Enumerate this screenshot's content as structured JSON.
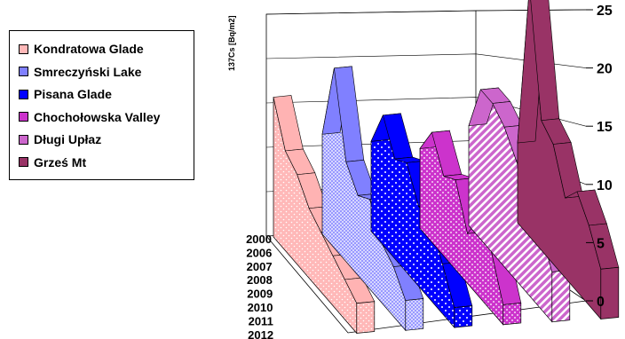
{
  "chart_data": {
    "type": "area",
    "variant": "3d-area",
    "title": "",
    "zlabel": "137Cs [Bq/m2]",
    "zlim": [
      0,
      25
    ],
    "z_ticks": [
      "0",
      "5",
      "10",
      "15",
      "20",
      "25"
    ],
    "years": [
      "2000",
      "2006",
      "2007",
      "2008",
      "2009",
      "2010",
      "2011",
      "2012"
    ],
    "grid": true,
    "legend_position": "left",
    "series": [
      {
        "name": "Kondratowa Glade",
        "color": "#ffb3b3",
        "pattern": "pink-dots",
        "values": [
          14,
          10,
          9,
          7,
          6,
          5,
          4,
          3
        ]
      },
      {
        "name": "Smreczyński Lake",
        "color": "#8080ff",
        "pattern": "grid",
        "values": [
          10,
          18,
          10,
          8,
          9,
          6,
          5,
          3
        ]
      },
      {
        "name": "Pisana Glade",
        "color": "#0000ff",
        "pattern": "white-dots",
        "values": [
          9,
          13,
          10,
          11,
          8,
          8,
          5,
          2
        ]
      },
      {
        "name": "Chochołowska Valley",
        "color": "#cc33cc",
        "pattern": "checker",
        "values": [
          8,
          11,
          8,
          9,
          5,
          8,
          6,
          2
        ]
      },
      {
        "name": "Długi Upłaz",
        "color": "#cc66cc",
        "pattern": "diagonal",
        "values": [
          10,
          15,
          15,
          14,
          12,
          10,
          8,
          5
        ]
      },
      {
        "name": "Grześ Mt",
        "color": "#993366",
        "pattern": "solid",
        "values": [
          8,
          25,
          13,
          12,
          8,
          10,
          8,
          5
        ]
      }
    ]
  }
}
